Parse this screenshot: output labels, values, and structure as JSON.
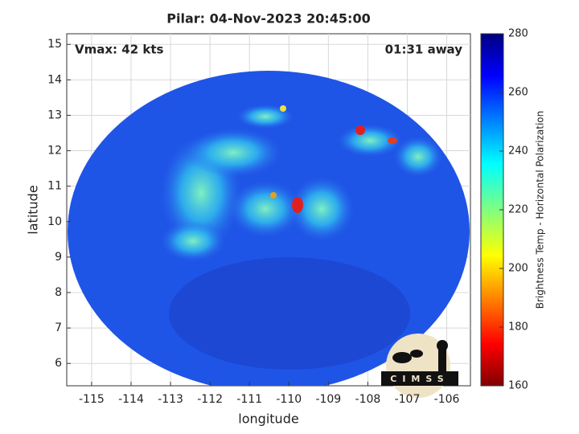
{
  "chart_data": {
    "type": "map",
    "title": "Pilar: 04-Nov-2023 20:45:00",
    "annotations": [
      "Vmax: 42 kts",
      "01:31 away"
    ],
    "xlabel": "longitude",
    "ylabel": "latitude",
    "xlim": [
      -115.63,
      -105.4
    ],
    "xticks": [
      -115,
      -114,
      -113,
      -112,
      -111,
      -110,
      -109,
      -108,
      -107,
      -106
    ],
    "ylim": [
      5.37,
      15.3
    ],
    "yticks": [
      6,
      7,
      8,
      9,
      10,
      11,
      12,
      13,
      14,
      15
    ],
    "grid": true,
    "colorbar": {
      "label": "Brightness Temp - Horizontal Polarization",
      "lim": [
        160,
        280
      ],
      "ticks": [
        160,
        180,
        200,
        220,
        240,
        260,
        280
      ]
    },
    "logo": "CIMSS"
  }
}
